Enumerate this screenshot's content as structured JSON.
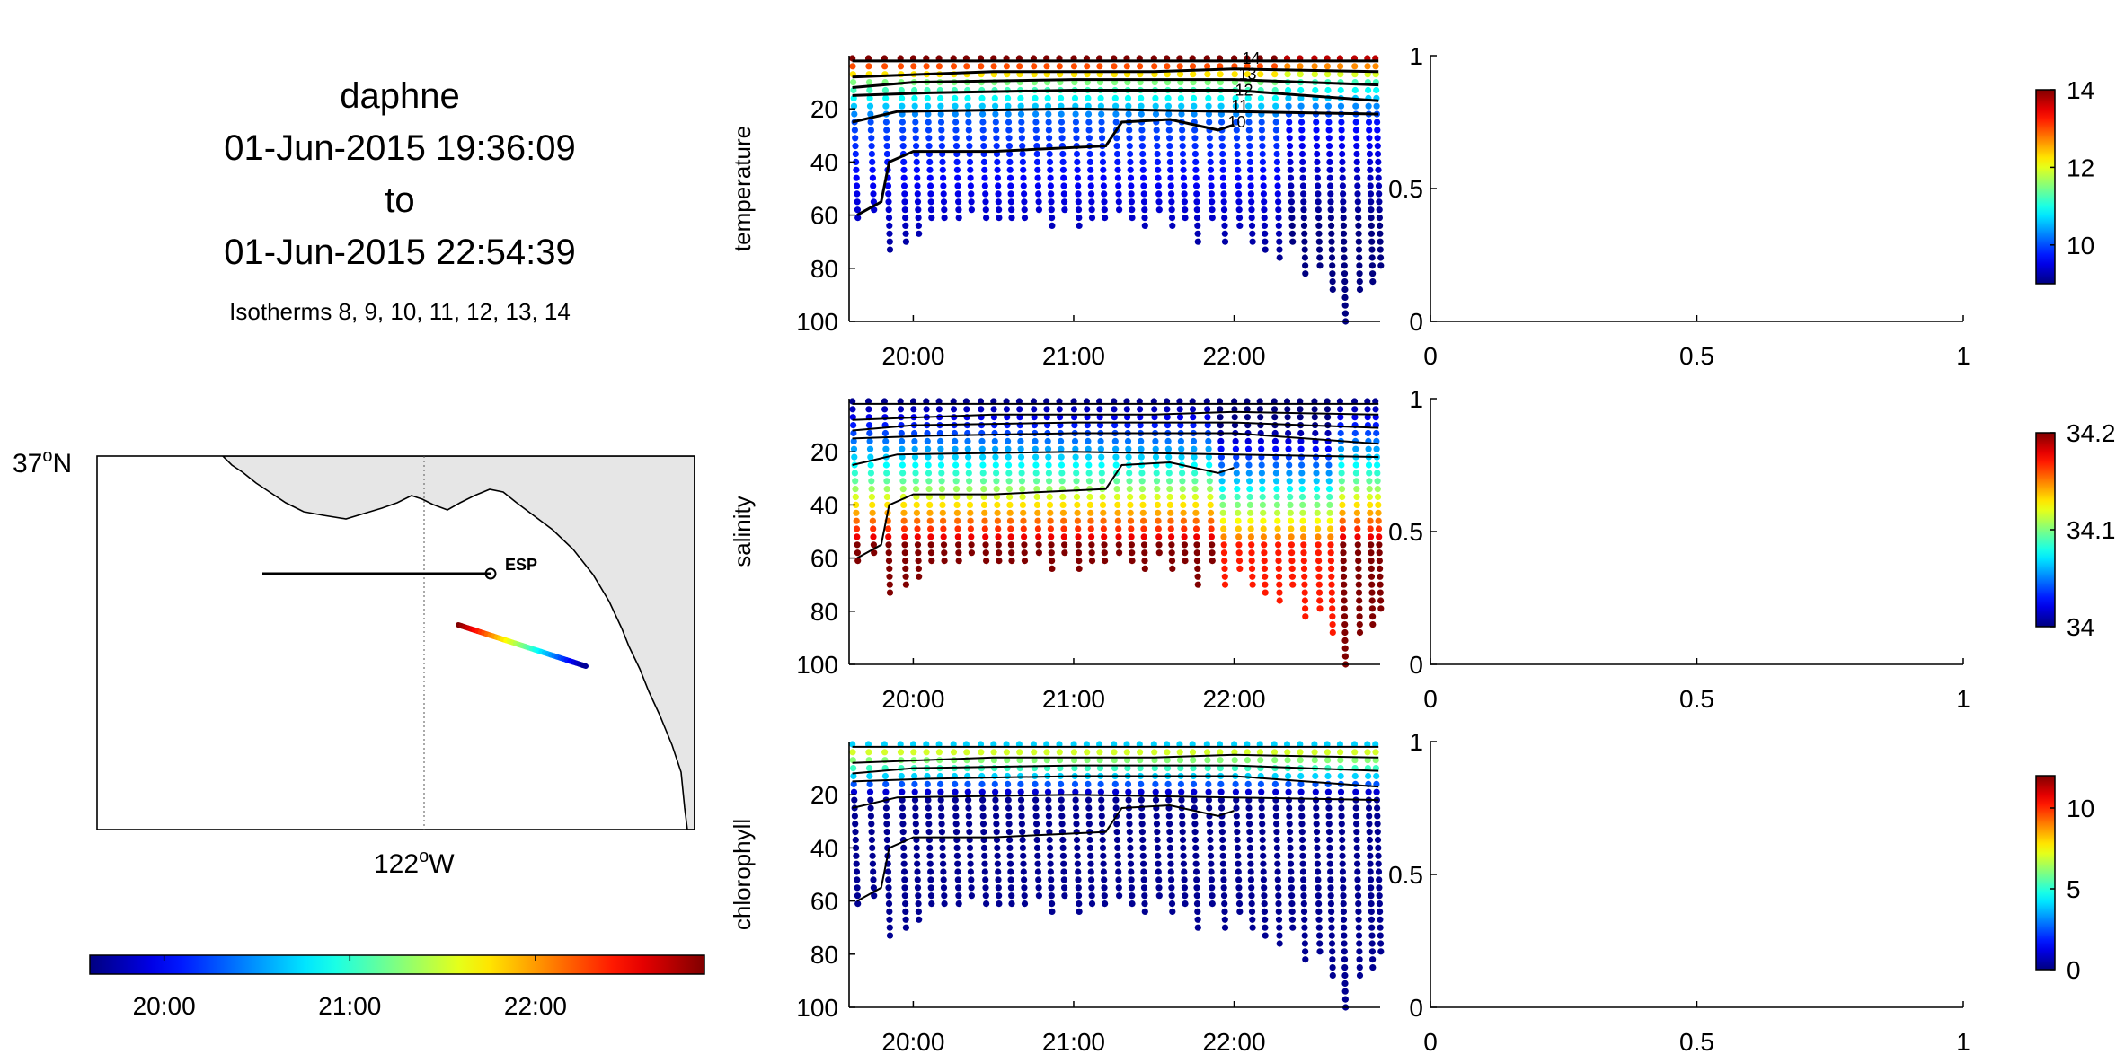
{
  "header": {
    "vehicle": "daphne",
    "start_time": "01-Jun-2015 19:36:09",
    "to_word": "to",
    "end_time": "01-Jun-2015 22:54:39",
    "isotherms_note": "Isotherms 8, 9, 10, 11, 12, 13, 14"
  },
  "map": {
    "lat_label": "37",
    "lat_suffix": "N",
    "lon_label": "122",
    "lon_suffix": "W",
    "degree_sup": "o",
    "station_label": "ESP",
    "land_color": "#e6e6e6",
    "time_colorbar": {
      "ticks": [
        "20:00",
        "21:00",
        "22:00"
      ],
      "range_hours": [
        19.6,
        22.91
      ],
      "tick_hours": [
        20,
        21,
        22
      ]
    }
  },
  "colors": {
    "colormap": "jet",
    "contour": "#000000"
  },
  "chart_data": [
    {
      "type": "scatter",
      "ylabel": "temperature",
      "xlim_hours": [
        19.6,
        22.91
      ],
      "x_ticks": [
        "20:00",
        "21:00",
        "22:00"
      ],
      "x_tick_hours": [
        20,
        21,
        22
      ],
      "ylim": [
        100,
        0
      ],
      "y_reversed": true,
      "y_ticks": [
        20,
        40,
        60,
        80,
        100
      ],
      "colorbar": {
        "range": [
          9,
          14
        ],
        "ticks": [
          10,
          12,
          14
        ]
      },
      "contour_labels": [
        "14",
        "13",
        "12",
        "11",
        "10"
      ],
      "profile_value_model": "temperature_by_depth_approx",
      "surface_value": 14,
      "deep_value": 9
    },
    {
      "type": "scatter",
      "ylabel": "salinity",
      "xlim_hours": [
        19.6,
        22.91
      ],
      "x_ticks": [
        "20:00",
        "21:00",
        "22:00"
      ],
      "x_tick_hours": [
        20,
        21,
        22
      ],
      "ylim": [
        100,
        0
      ],
      "y_reversed": true,
      "y_ticks": [
        20,
        40,
        60,
        80,
        100
      ],
      "colorbar": {
        "range": [
          34,
          34.2
        ],
        "ticks": [
          "34",
          "34.1",
          "34.2"
        ]
      },
      "profile_value_model": "salinity_by_depth_approx",
      "surface_value": 34.0,
      "deep_value": 34.2
    },
    {
      "type": "scatter",
      "ylabel": "chlorophyll",
      "xlim_hours": [
        19.6,
        22.91
      ],
      "x_ticks": [
        "20:00",
        "21:00",
        "22:00"
      ],
      "x_tick_hours": [
        20,
        21,
        22
      ],
      "ylim": [
        100,
        0
      ],
      "y_reversed": true,
      "y_ticks": [
        20,
        40,
        60,
        80,
        100
      ],
      "colorbar": {
        "range": [
          0,
          12
        ],
        "ticks": [
          0,
          5,
          10
        ]
      },
      "profile_value_model": "chlorophyll_by_depth_approx",
      "surface_value": 4,
      "max_value": 12
    },
    {
      "type": "line",
      "empty_axes": true,
      "xlim": [
        0,
        1
      ],
      "ylim": [
        0,
        1
      ],
      "x_ticks": [
        "0",
        "0.5",
        "1"
      ],
      "y_ticks": [
        "0",
        "0.5",
        "1"
      ]
    }
  ],
  "profiles": {
    "start_hour": 19.6,
    "end_hour": 22.9,
    "count": 42,
    "max_depth_by_hour": [
      [
        19.62,
        62
      ],
      [
        19.72,
        58
      ],
      [
        19.82,
        73
      ],
      [
        19.92,
        70
      ],
      [
        20.0,
        67
      ],
      [
        20.08,
        63
      ],
      [
        20.16,
        62
      ],
      [
        20.25,
        62
      ],
      [
        20.33,
        60
      ],
      [
        20.42,
        62
      ],
      [
        20.5,
        61
      ],
      [
        20.58,
        63
      ],
      [
        20.66,
        61
      ],
      [
        20.75,
        60
      ],
      [
        20.83,
        64
      ],
      [
        20.91,
        60
      ],
      [
        21.0,
        65
      ],
      [
        21.08,
        61
      ],
      [
        21.16,
        63
      ],
      [
        21.25,
        60
      ],
      [
        21.33,
        62
      ],
      [
        21.41,
        65
      ],
      [
        21.5,
        60
      ],
      [
        21.58,
        64
      ],
      [
        21.66,
        62
      ],
      [
        21.74,
        70
      ],
      [
        21.83,
        62
      ],
      [
        21.91,
        72
      ],
      [
        22.0,
        64
      ],
      [
        22.08,
        70
      ],
      [
        22.16,
        75
      ],
      [
        22.25,
        78
      ],
      [
        22.33,
        70
      ],
      [
        22.41,
        84
      ],
      [
        22.5,
        80
      ],
      [
        22.58,
        88
      ],
      [
        22.66,
        100
      ],
      [
        22.75,
        90
      ],
      [
        22.83,
        87
      ],
      [
        22.88,
        80
      ]
    ]
  }
}
